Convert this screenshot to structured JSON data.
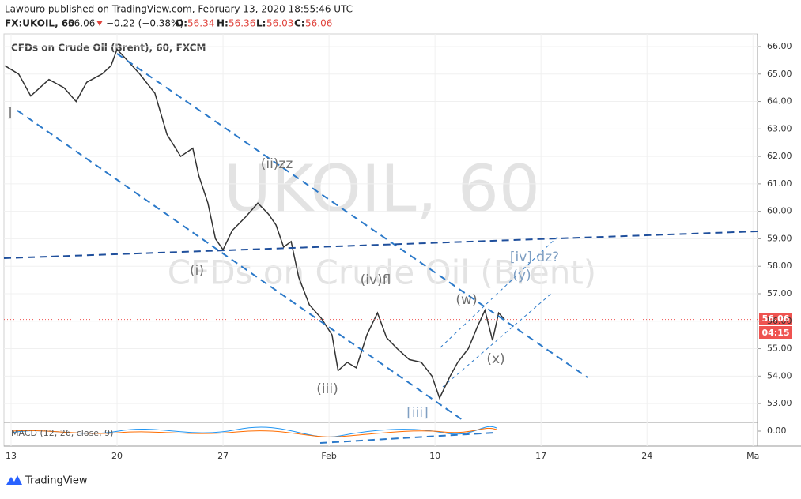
{
  "header": {
    "published": "Lawburo published on TradingView.com, February 13, 2020 18:55:46 UTC",
    "symbol": "FX:UKOIL, 60",
    "last": "56.06",
    "change": "−0.22 (−0.38%)",
    "o_label": "O:",
    "o": "56.34",
    "h_label": "H:",
    "h": "56.36",
    "l_label": "L:",
    "l": "56.03",
    "c_label": "C:",
    "c": "56.06"
  },
  "chart_data": {
    "type": "line",
    "title": "CFDs on Crude Oil (Brent), 60, FXCM",
    "watermark": [
      "UKOIL, 60",
      "CFDs on Crude Oil (Brent)"
    ],
    "color": "#333333",
    "x": [
      -0.4,
      0.5,
      1.3,
      2.5,
      3.5,
      4.3,
      5,
      6,
      6.6,
      7,
      7.5,
      8.5,
      9.5,
      10.3,
      11.2,
      12,
      12.4,
      13,
      13.5,
      14,
      14.6,
      15.5,
      16.3,
      17,
      17.5,
      18,
      18.5,
      19,
      19.7,
      20.5,
      21.2,
      21.6,
      22.2,
      22.8,
      23.5,
      24.2,
      24.8,
      25.5,
      26.3,
      27.1,
      27.8,
      28.3,
      29,
      29.5,
      30.2,
      30.8,
      31.3,
      31.8,
      32.2,
      32.6
    ],
    "values": [
      65.3,
      65.0,
      64.2,
      64.8,
      64.5,
      64.0,
      64.7,
      65.0,
      65.3,
      65.9,
      65.6,
      65.0,
      64.3,
      62.8,
      62.0,
      62.3,
      61.3,
      60.3,
      59.0,
      58.6,
      59.3,
      59.8,
      60.3,
      59.9,
      59.5,
      58.7,
      58.9,
      57.6,
      56.6,
      56.1,
      55.5,
      54.2,
      54.5,
      54.3,
      55.5,
      56.3,
      55.4,
      55.0,
      54.6,
      54.5,
      54.0,
      53.2,
      54.0,
      54.5,
      55.0,
      55.8,
      56.4,
      55.3,
      56.3,
      56.06
    ],
    "xlim": [
      -0.47,
      49.3
    ],
    "xticks": [
      {
        "value": 0,
        "label": "13"
      },
      {
        "value": 7,
        "label": "20"
      },
      {
        "value": 14,
        "label": "27"
      },
      {
        "value": 21,
        "label": "Feb"
      },
      {
        "value": 28,
        "label": "10"
      },
      {
        "value": 35,
        "label": "17"
      },
      {
        "value": 42,
        "label": "24"
      },
      {
        "value": 49,
        "label": "Ma"
      }
    ],
    "ylim": [
      52.37,
      66.46
    ],
    "yticks": [
      {
        "value": 53,
        "label": "53.00"
      },
      {
        "value": 54,
        "label": "54.00"
      },
      {
        "value": 55,
        "label": "55.00"
      },
      {
        "value": 56,
        "label": "56.00"
      },
      {
        "value": 57,
        "label": "57.00"
      },
      {
        "value": 58,
        "label": "58.00"
      },
      {
        "value": 59,
        "label": "59.00"
      },
      {
        "value": 60,
        "label": "60.00"
      },
      {
        "value": 61,
        "label": "61.00"
      },
      {
        "value": 62,
        "label": "62.00"
      },
      {
        "value": 63,
        "label": "63.00"
      },
      {
        "value": 64,
        "label": "64.00"
      },
      {
        "value": 65,
        "label": "65.00"
      },
      {
        "value": 66,
        "label": "66.00"
      }
    ],
    "last_price": {
      "value": 56.06,
      "label": "56.06"
    },
    "countdown": "04:15",
    "annotations": [
      "(ii)zz",
      "(i)",
      "(iv)fl",
      "(iii)",
      "[iii]",
      "(w)",
      "(x)",
      "(y)",
      "[iv] dz?",
      "]"
    ],
    "indicator": {
      "label": "MACD (12, 26, close, 9)",
      "yticks": [
        {
          "value": 0,
          "label": "0.00"
        }
      ]
    }
  },
  "footer": {
    "brand": "TradingView"
  }
}
